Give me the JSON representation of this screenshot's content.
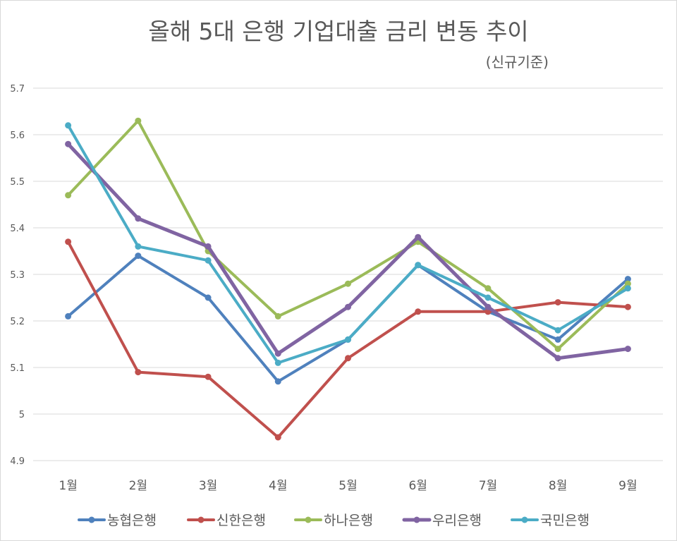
{
  "chart_data": {
    "type": "line",
    "title": "올해 5대 은행 기업대출 금리 변동 추이",
    "subtitle": "(신규기준)",
    "categories": [
      "1월",
      "2월",
      "3월",
      "4월",
      "5월",
      "6월",
      "7월",
      "8월",
      "9월"
    ],
    "ylim": [
      4.9,
      5.7
    ],
    "yticks": [
      "4.9",
      "5",
      "5.1",
      "5.2",
      "5.3",
      "5.4",
      "5.5",
      "5.6",
      "5.7"
    ],
    "grid": true,
    "legend_position": "bottom",
    "series": [
      {
        "name": "농협은행",
        "color": "#4f81bd",
        "values": [
          5.21,
          5.34,
          5.25,
          5.07,
          5.16,
          5.32,
          5.22,
          5.16,
          5.29
        ]
      },
      {
        "name": "신한은행",
        "color": "#c0504d",
        "values": [
          5.37,
          5.09,
          5.08,
          4.95,
          5.12,
          5.22,
          5.22,
          5.24,
          5.23
        ]
      },
      {
        "name": "하나은행",
        "color": "#9bbb59",
        "values": [
          5.47,
          5.63,
          5.35,
          5.21,
          5.28,
          5.37,
          5.27,
          5.14,
          5.28
        ]
      },
      {
        "name": "우리은행",
        "color": "#8064a2",
        "values": [
          5.58,
          5.42,
          5.36,
          5.13,
          5.23,
          5.38,
          5.23,
          5.12,
          5.14
        ]
      },
      {
        "name": "국민은행",
        "color": "#4bacc6",
        "values": [
          5.62,
          5.36,
          5.33,
          5.11,
          5.16,
          5.32,
          5.25,
          5.18,
          5.27
        ]
      }
    ]
  }
}
